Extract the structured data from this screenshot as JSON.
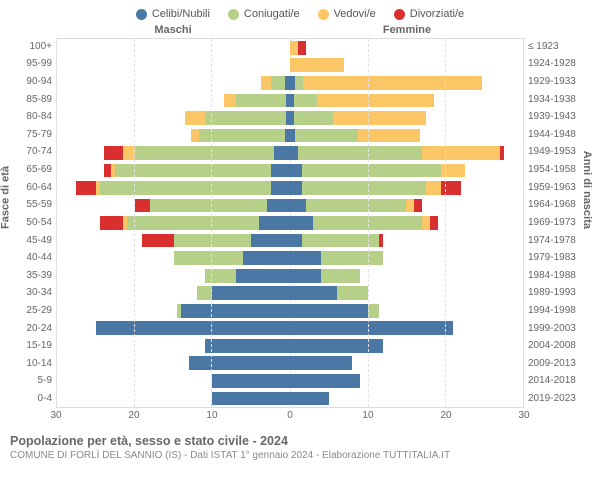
{
  "legend": [
    {
      "label": "Celibi/Nubili",
      "color": "#4b77a5"
    },
    {
      "label": "Coniugati/e",
      "color": "#b6d089"
    },
    {
      "label": "Vedovi/e",
      "color": "#fbc666"
    },
    {
      "label": "Divorziati/e",
      "color": "#d92f2f"
    }
  ],
  "headers": {
    "male": "Maschi",
    "female": "Femmine"
  },
  "y_left_title": "Fasce di età",
  "y_right_title": "Anni di nascita",
  "x_max": 30,
  "x_ticks": [
    30,
    20,
    10,
    0,
    10,
    20,
    30
  ],
  "age_groups": [
    "100+",
    "95-99",
    "90-94",
    "85-89",
    "80-84",
    "75-79",
    "70-74",
    "65-69",
    "60-64",
    "55-59",
    "50-54",
    "45-49",
    "40-44",
    "35-39",
    "30-34",
    "25-29",
    "20-24",
    "15-19",
    "10-14",
    "5-9",
    "0-4"
  ],
  "birth_years": [
    "≤ 1923",
    "1924-1928",
    "1929-1933",
    "1934-1938",
    "1939-1943",
    "1944-1948",
    "1949-1953",
    "1954-1958",
    "1959-1963",
    "1964-1968",
    "1969-1973",
    "1974-1978",
    "1979-1983",
    "1984-1988",
    "1989-1993",
    "1994-1998",
    "1999-2003",
    "2004-2008",
    "2009-2013",
    "2014-2018",
    "2019-2023"
  ],
  "colors": {
    "single": "#4b77a5",
    "married": "#b6d089",
    "widowed": "#fbc666",
    "divorced": "#d92f2f",
    "grid": "#e2e2e2",
    "border": "#dcdcdc",
    "bg": "#ffffff"
  },
  "male": [
    {
      "s": 0,
      "m": 0,
      "w": 0,
      "d": 0
    },
    {
      "s": 0,
      "m": 0,
      "w": 0,
      "d": 0
    },
    {
      "s": 0.7,
      "m": 1.8,
      "w": 1.2,
      "d": 0
    },
    {
      "s": 0.5,
      "m": 6.5,
      "w": 1.5,
      "d": 0
    },
    {
      "s": 0.5,
      "m": 10.5,
      "w": 2.5,
      "d": 0
    },
    {
      "s": 0.7,
      "m": 11,
      "w": 1,
      "d": 0
    },
    {
      "s": 2,
      "m": 18,
      "w": 1.5,
      "d": 2.5
    },
    {
      "s": 2.5,
      "m": 20,
      "w": 0.5,
      "d": 1
    },
    {
      "s": 2.5,
      "m": 22,
      "w": 0.5,
      "d": 2.5
    },
    {
      "s": 3,
      "m": 15,
      "w": 0,
      "d": 2
    },
    {
      "s": 4,
      "m": 17,
      "w": 0.5,
      "d": 3
    },
    {
      "s": 5,
      "m": 10,
      "w": 0,
      "d": 4
    },
    {
      "s": 6,
      "m": 9,
      "w": 0,
      "d": 0
    },
    {
      "s": 7,
      "m": 4,
      "w": 0,
      "d": 0
    },
    {
      "s": 10,
      "m": 2,
      "w": 0,
      "d": 0
    },
    {
      "s": 14,
      "m": 0.5,
      "w": 0,
      "d": 0
    },
    {
      "s": 25,
      "m": 0,
      "w": 0,
      "d": 0
    },
    {
      "s": 11,
      "m": 0,
      "w": 0,
      "d": 0
    },
    {
      "s": 13,
      "m": 0,
      "w": 0,
      "d": 0
    },
    {
      "s": 10,
      "m": 0,
      "w": 0,
      "d": 0
    },
    {
      "s": 10,
      "m": 0,
      "w": 0,
      "d": 0
    }
  ],
  "female": [
    {
      "s": 0,
      "m": 0,
      "w": 1,
      "d": 1
    },
    {
      "s": 0,
      "m": 0,
      "w": 7,
      "d": 0
    },
    {
      "s": 0.7,
      "m": 1,
      "w": 23,
      "d": 0
    },
    {
      "s": 0.5,
      "m": 3,
      "w": 15,
      "d": 0
    },
    {
      "s": 0.5,
      "m": 5,
      "w": 12,
      "d": 0
    },
    {
      "s": 0.7,
      "m": 8,
      "w": 8,
      "d": 0
    },
    {
      "s": 1,
      "m": 16,
      "w": 10,
      "d": 0.5
    },
    {
      "s": 1.5,
      "m": 18,
      "w": 3,
      "d": 0
    },
    {
      "s": 1.5,
      "m": 16,
      "w": 2,
      "d": 2.5
    },
    {
      "s": 2,
      "m": 13,
      "w": 1,
      "d": 1
    },
    {
      "s": 3,
      "m": 14,
      "w": 1,
      "d": 1
    },
    {
      "s": 1.5,
      "m": 10,
      "w": 0,
      "d": 0.5
    },
    {
      "s": 4,
      "m": 8,
      "w": 0,
      "d": 0
    },
    {
      "s": 4,
      "m": 5,
      "w": 0,
      "d": 0
    },
    {
      "s": 6,
      "m": 4,
      "w": 0,
      "d": 0
    },
    {
      "s": 10,
      "m": 1.5,
      "w": 0,
      "d": 0
    },
    {
      "s": 21,
      "m": 0,
      "w": 0,
      "d": 0
    },
    {
      "s": 12,
      "m": 0,
      "w": 0,
      "d": 0
    },
    {
      "s": 8,
      "m": 0,
      "w": 0,
      "d": 0
    },
    {
      "s": 9,
      "m": 0,
      "w": 0,
      "d": 0
    },
    {
      "s": 5,
      "m": 0,
      "w": 0,
      "d": 0
    }
  ],
  "title": "Popolazione per età, sesso e stato civile - 2024",
  "subtitle": "COMUNE DI FORLÌ DEL SANNIO (IS) - Dati ISTAT 1° gennaio 2024 - Elaborazione TUTTITALIA.IT"
}
